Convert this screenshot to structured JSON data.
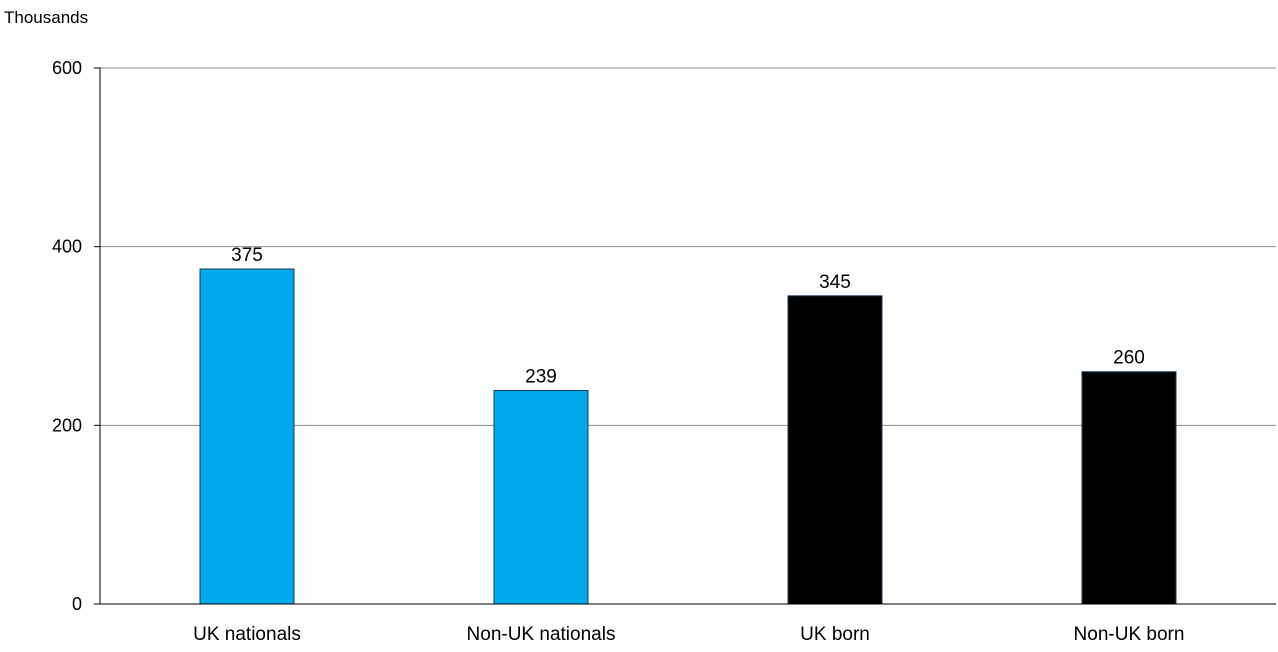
{
  "chart_data": {
    "type": "bar",
    "ylabel": "Thousands",
    "categories": [
      "UK nationals",
      "Non-UK nationals",
      "UK born",
      "Non-UK born"
    ],
    "values": [
      375,
      239,
      345,
      260
    ],
    "bar_colors": [
      "#00a9eb",
      "#00a9eb",
      "#000000",
      "#000000"
    ],
    "data_labels": [
      "375",
      "239",
      "345",
      "260"
    ],
    "ylim": [
      0,
      600
    ],
    "yticks": [
      0,
      200,
      400,
      600
    ],
    "ytick_labels": [
      "0",
      "200",
      "400",
      "600"
    ],
    "grid": true,
    "legend": "none"
  }
}
